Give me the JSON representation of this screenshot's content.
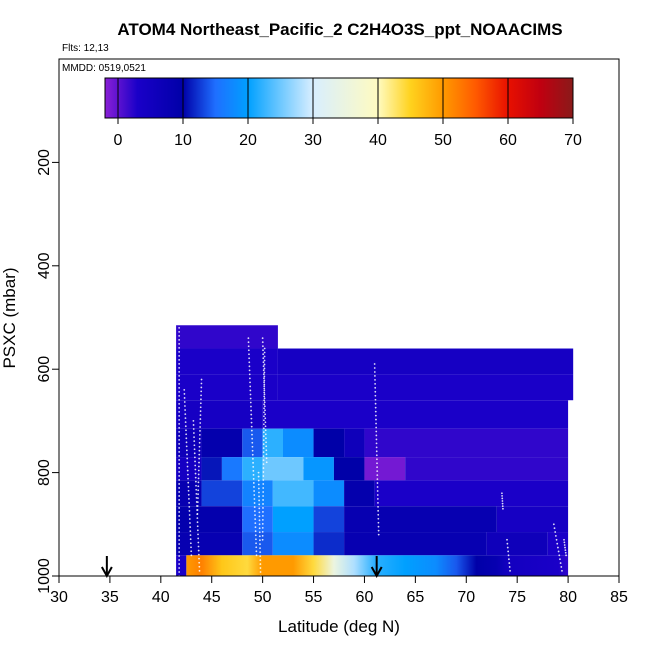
{
  "chart_data": {
    "type": "heatmap",
    "title": "ATOM4 Northeast_Pacific_2 C2H4O3S_ppt_NOAACIMS",
    "flights_label": "Flts: 12,13",
    "mmdd_label": "MMDD: 0519,0521",
    "xlabel": "Latitude (deg N)",
    "ylabel": "PSXC (mbar)",
    "xlim": [
      30,
      85
    ],
    "ylim": [
      1000,
      0
    ],
    "x_ticks": [
      "30",
      "35",
      "40",
      "45",
      "50",
      "55",
      "60",
      "65",
      "70",
      "75",
      "80",
      "85"
    ],
    "y_ticks": [
      "200",
      "400",
      "600",
      "800",
      "1000"
    ],
    "colorbar": {
      "range": [
        -2,
        70
      ],
      "ticks": [
        "0",
        "10",
        "20",
        "30",
        "40",
        "50",
        "60",
        "70"
      ],
      "stops": [
        {
          "v": -2,
          "color": "#8a1fd6"
        },
        {
          "v": 3,
          "color": "#1a00c8"
        },
        {
          "v": 10,
          "color": "#0000a8"
        },
        {
          "v": 15,
          "color": "#1f6fff"
        },
        {
          "v": 20,
          "color": "#00a0ff"
        },
        {
          "v": 25,
          "color": "#6ec8ff"
        },
        {
          "v": 30,
          "color": "#d8eeff"
        },
        {
          "v": 40,
          "color": "#fffbc0"
        },
        {
          "v": 45,
          "color": "#ffd21e"
        },
        {
          "v": 50,
          "color": "#ff9a00"
        },
        {
          "v": 55,
          "color": "#ff5a00"
        },
        {
          "v": 60,
          "color": "#e81000"
        },
        {
          "v": 65,
          "color": "#c00010"
        },
        {
          "v": 70,
          "color": "#8a1a1a"
        }
      ]
    },
    "markers_lat": [
      34.7,
      61.2
    ],
    "bands": [
      {
        "p0": 515,
        "p1": 560,
        "cells": [
          [
            41.5,
            51.5,
            2
          ]
        ]
      },
      {
        "p0": 560,
        "p1": 610,
        "cells": [
          [
            41.5,
            51.5,
            3
          ],
          [
            51.5,
            80.5,
            4
          ]
        ]
      },
      {
        "p0": 610,
        "p1": 660,
        "cells": [
          [
            41.5,
            51.5,
            3
          ],
          [
            51.5,
            80.5,
            3
          ]
        ]
      },
      {
        "p0": 660,
        "p1": 715,
        "cells": [
          [
            41.5,
            50,
            4
          ],
          [
            50,
            80,
            3
          ]
        ]
      },
      {
        "p0": 715,
        "p1": 770,
        "cells": [
          [
            41.5,
            44,
            6
          ],
          [
            44,
            48,
            9
          ],
          [
            48,
            50,
            14
          ],
          [
            50,
            52,
            22
          ],
          [
            52,
            55,
            18
          ],
          [
            55,
            58,
            10
          ],
          [
            58,
            60,
            6
          ],
          [
            60,
            80,
            2
          ]
        ]
      },
      {
        "p0": 770,
        "p1": 815,
        "cells": [
          [
            41.5,
            44,
            4
          ],
          [
            44,
            46,
            11
          ],
          [
            46,
            48,
            16
          ],
          [
            48,
            50,
            22
          ],
          [
            50,
            54,
            25
          ],
          [
            54,
            57,
            19
          ],
          [
            57,
            60,
            10
          ],
          [
            60,
            64,
            -1
          ],
          [
            64,
            80,
            2
          ]
        ]
      },
      {
        "p0": 815,
        "p1": 865,
        "cells": [
          [
            41.5,
            44,
            8
          ],
          [
            44,
            48,
            13
          ],
          [
            48,
            51,
            17
          ],
          [
            51,
            55,
            23
          ],
          [
            55,
            58,
            18
          ],
          [
            58,
            61,
            9
          ],
          [
            61,
            80,
            3
          ]
        ]
      },
      {
        "p0": 865,
        "p1": 915,
        "cells": [
          [
            41.5,
            48,
            9
          ],
          [
            48,
            51,
            15
          ],
          [
            51,
            55,
            20
          ],
          [
            55,
            58,
            13
          ],
          [
            58,
            73,
            8
          ],
          [
            73,
            80,
            4
          ]
        ]
      },
      {
        "p0": 915,
        "p1": 960,
        "cells": [
          [
            41.5,
            48,
            8
          ],
          [
            48,
            51,
            14
          ],
          [
            51,
            55,
            18
          ],
          [
            55,
            58,
            12
          ],
          [
            58,
            72,
            8
          ],
          [
            72,
            78,
            6
          ],
          [
            78,
            80,
            3
          ]
        ]
      }
    ],
    "bottom_band": {
      "p0": 960,
      "p1": 1000,
      "stops": [
        [
          42.5,
          50
        ],
        [
          44,
          52
        ],
        [
          46,
          46
        ],
        [
          48.5,
          44
        ],
        [
          50,
          50
        ],
        [
          53,
          50
        ],
        [
          55,
          44
        ],
        [
          57,
          35
        ],
        [
          59,
          28
        ],
        [
          61,
          22
        ],
        [
          64,
          20
        ],
        [
          67,
          18
        ],
        [
          69,
          14
        ],
        [
          71,
          10
        ],
        [
          73,
          8
        ],
        [
          74,
          5
        ],
        [
          76,
          4
        ],
        [
          79,
          3
        ],
        [
          80,
          2
        ]
      ]
    }
  }
}
